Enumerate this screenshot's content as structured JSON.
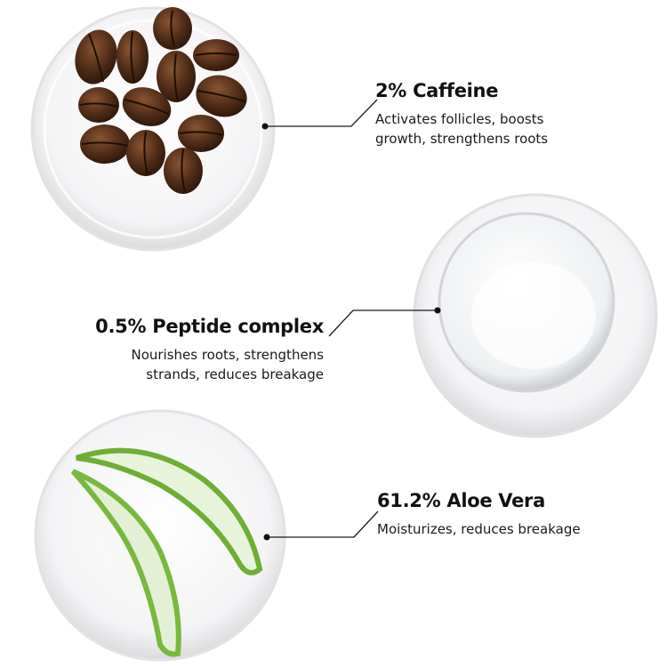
{
  "ingredients": [
    {
      "title": "2% Caffeine",
      "desc1": "Activates follicles, boosts",
      "desc2": "growth, strengthens roots",
      "image": "coffee-beans"
    },
    {
      "title": "0.5% Peptide complex",
      "desc1": "Nourishes roots, strengthens",
      "desc2": "strands, reduces breakage",
      "image": "clear-gel"
    },
    {
      "title": "61.2% Aloe Vera",
      "desc1": "Moisturizes, reduces breakage",
      "image": "aloe-vera-slices"
    }
  ],
  "colors": {
    "text": "#111111",
    "bean": "#4a2a18",
    "aloe": "#7cc043",
    "dish": "#f3f2f3"
  }
}
